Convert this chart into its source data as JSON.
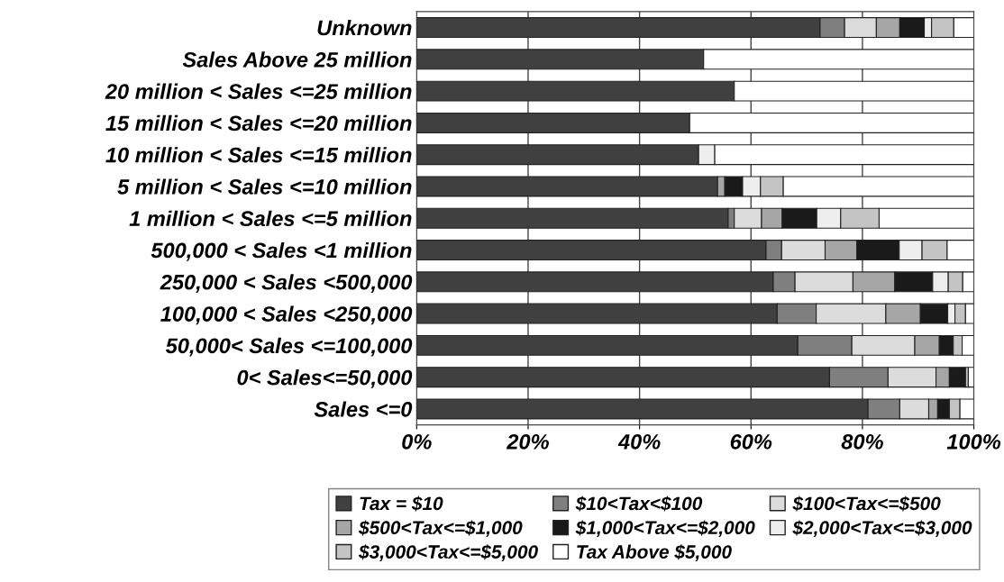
{
  "chart_data": {
    "type": "bar",
    "orientation": "horizontal",
    "stacked": true,
    "categories": [
      "Unknown",
      "Sales Above 25 million",
      "20 million < Sales <=25 million",
      "15 million < Sales <=20 million",
      "10 million < Sales <=15 million",
      "5 million < Sales <=10 million",
      "1 million < Sales <=5 million",
      "500,000 < Sales <1 million",
      "250,000 < Sales <500,000",
      "100,000 < Sales <250,000",
      "50,000< Sales <=100,000",
      "0< Sales<=50,000",
      "Sales <=0"
    ],
    "series": [
      {
        "name": "Tax = $10",
        "color": "#404040",
        "values": [
          72.4,
          51.5,
          57.0,
          49.0,
          50.6,
          54.0,
          55.9,
          62.7,
          64.0,
          64.7,
          68.4,
          74.1,
          81.0
        ]
      },
      {
        "name": "$10<Tax<$100",
        "color": "#7f7f7f",
        "values": [
          4.4,
          0,
          0,
          0,
          0,
          0,
          1.1,
          2.8,
          3.9,
          7.0,
          9.7,
          10.5,
          5.7
        ]
      },
      {
        "name": "$100<Tax<=$500",
        "color": "#dcdcdc",
        "values": [
          5.7,
          0,
          0,
          0,
          0,
          0,
          4.9,
          7.8,
          10.4,
          12.5,
          11.3,
          8.6,
          5.2
        ]
      },
      {
        "name": "$500<Tax<=$1,000",
        "color": "#a6a6a6",
        "values": [
          4.2,
          0,
          0,
          0,
          0,
          1.3,
          3.7,
          5.7,
          7.5,
          6.2,
          4.4,
          2.4,
          1.6
        ]
      },
      {
        "name": "$1,000<Tax<=$2,000",
        "color": "#1a1a1a",
        "values": [
          4.4,
          0,
          0,
          0,
          0,
          3.2,
          6.2,
          7.6,
          6.8,
          4.9,
          2.5,
          2.9,
          2.1
        ]
      },
      {
        "name": "$2,000<Tax<=$3,000",
        "color": "#eeeeee",
        "values": [
          1.3,
          0,
          0,
          0,
          2.9,
          3.2,
          4.3,
          4.1,
          2.8,
          1.3,
          0,
          0,
          0
        ]
      },
      {
        "name": "$3,000<Tax<=$5,000",
        "color": "#c4c4c4",
        "values": [
          4.0,
          0,
          0,
          0,
          0,
          4.1,
          6.9,
          4.5,
          2.6,
          1.9,
          1.6,
          0.5,
          1.9
        ]
      },
      {
        "name": "Tax Above $5,000",
        "color": "#ffffff",
        "values": [
          3.6,
          48.5,
          43.0,
          51.0,
          46.5,
          34.2,
          17.0,
          4.8,
          2.0,
          1.5,
          2.1,
          1.0,
          2.5
        ]
      }
    ],
    "xlim": [
      0,
      100
    ],
    "xticks": [
      {
        "value": 0,
        "label": "0%"
      },
      {
        "value": 20,
        "label": "20%"
      },
      {
        "value": 40,
        "label": "40%"
      },
      {
        "value": 60,
        "label": "60%"
      },
      {
        "value": 80,
        "label": "80%"
      },
      {
        "value": 100,
        "label": "100%"
      }
    ],
    "grid": "x",
    "legend": "bottom"
  }
}
